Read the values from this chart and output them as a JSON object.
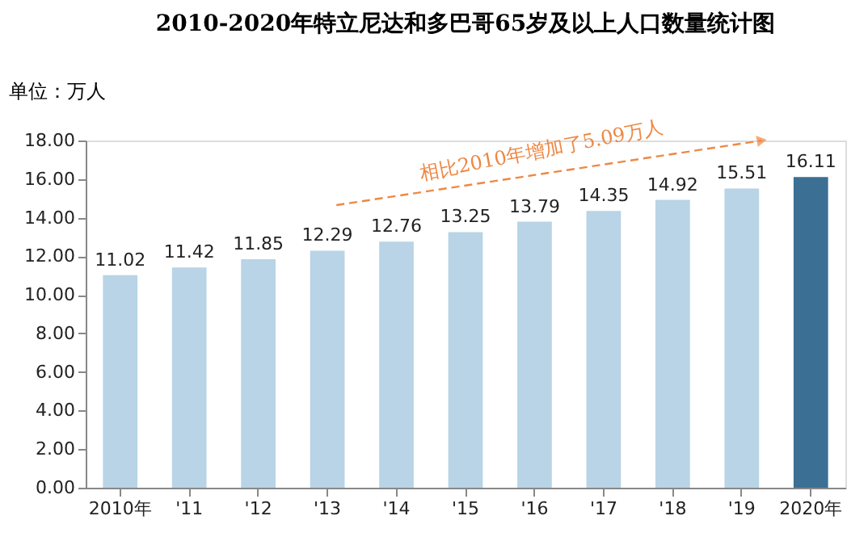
{
  "chart_data": {
    "type": "bar",
    "title": "2010-2020年特立尼达和多巴哥65岁及以上人口数量统计图",
    "ylabel": "单位：万人",
    "categories": [
      "2010年",
      "'11",
      "'12",
      "'13",
      "'14",
      "'15",
      "'16",
      "'17",
      "'18",
      "'19",
      "2020年"
    ],
    "values": [
      11.02,
      11.42,
      11.85,
      12.29,
      12.76,
      13.25,
      13.79,
      14.35,
      14.92,
      15.51,
      16.11
    ],
    "colors": [
      "#b8d4e6",
      "#b8d4e6",
      "#b8d4e6",
      "#b8d4e6",
      "#b8d4e6",
      "#b8d4e6",
      "#b8d4e6",
      "#b8d4e6",
      "#b8d4e6",
      "#b8d4e6",
      "#3b6f94"
    ],
    "data_labels": true,
    "grid": false,
    "ylim": [
      0,
      18
    ],
    "yticks": [
      {
        "value": 0,
        "label": "0.00"
      },
      {
        "value": 2,
        "label": "2.00"
      },
      {
        "value": 4,
        "label": "4.00"
      },
      {
        "value": 6,
        "label": "6.00"
      },
      {
        "value": 8,
        "label": "8.00"
      },
      {
        "value": 10,
        "label": "10.00"
      },
      {
        "value": 12,
        "label": "12.00"
      },
      {
        "value": 14,
        "label": "14.00"
      },
      {
        "value": 16,
        "label": "16.00"
      },
      {
        "value": 18,
        "label": "18.00"
      }
    ],
    "annotations": [
      "相比2010年增加了5.09万人"
    ]
  }
}
